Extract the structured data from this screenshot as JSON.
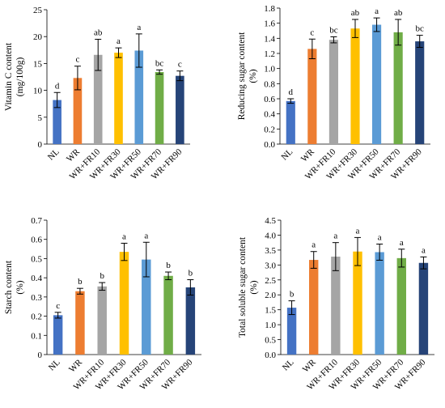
{
  "chart_data": [
    {
      "type": "bar",
      "ylabel": "Vitamin C content\n(mg/100g)",
      "ylim": [
        0,
        25
      ],
      "yticks": [
        0,
        5,
        10,
        15,
        20,
        25
      ],
      "grid": false,
      "categories": [
        "NL",
        "WR",
        "WR+FR10",
        "WR+FR30",
        "WR+FR50",
        "WR+FR70",
        "WR+FR90"
      ],
      "values": [
        8.2,
        12.3,
        16.6,
        17.0,
        17.4,
        13.4,
        12.7
      ],
      "errors": [
        1.4,
        2.2,
        2.9,
        0.9,
        3.1,
        0.4,
        0.9
      ],
      "letters": [
        "d",
        "c",
        "ab",
        "a",
        "a",
        "bc",
        "c"
      ]
    },
    {
      "type": "bar",
      "ylabel": "Reducing sugar content\n(%)",
      "ylim": [
        0,
        1.8
      ],
      "yticks": [
        0,
        0.2,
        0.4,
        0.6,
        0.8,
        1.0,
        1.2,
        1.4,
        1.6,
        1.8
      ],
      "yticklabels": [
        "0.0",
        "0.2",
        "0.4",
        "0.6",
        "0.8",
        "1.0",
        "1.2",
        "1.4",
        "1.6",
        "1.8"
      ],
      "grid": false,
      "categories": [
        "NL",
        "WR",
        "WR+FR10",
        "WR+FR30",
        "WR+FR50",
        "WR+FR70",
        "WR+FR90"
      ],
      "values": [
        0.57,
        1.26,
        1.38,
        1.53,
        1.58,
        1.48,
        1.36
      ],
      "errors": [
        0.03,
        0.13,
        0.04,
        0.12,
        0.09,
        0.17,
        0.08
      ],
      "letters": [
        "d",
        "c",
        "bc",
        "ab",
        "a",
        "ab",
        "bc"
      ]
    },
    {
      "type": "bar",
      "ylabel": "Starch content\n(%)",
      "ylim": [
        0,
        0.7
      ],
      "yticks": [
        0,
        0.1,
        0.2,
        0.3,
        0.4,
        0.5,
        0.6,
        0.7
      ],
      "yticklabels": [
        "0",
        "0.1",
        "0.2",
        "0.3",
        "0.4",
        "0.5",
        "0.6",
        "0.7"
      ],
      "grid": false,
      "categories": [
        "NL",
        "WR",
        "WR+FR10",
        "WR+FR30",
        "WR+FR50",
        "WR+FR70",
        "WR+FR90"
      ],
      "values": [
        0.205,
        0.33,
        0.355,
        0.535,
        0.495,
        0.41,
        0.35
      ],
      "errors": [
        0.015,
        0.015,
        0.02,
        0.045,
        0.09,
        0.02,
        0.04
      ],
      "letters": [
        "c",
        "b",
        "b",
        "a",
        "a",
        "b",
        "b"
      ]
    },
    {
      "type": "bar",
      "ylabel": "Total soluble sugar content\n(%)",
      "ylim": [
        0,
        4.5
      ],
      "yticks": [
        0,
        0.5,
        1.0,
        1.5,
        2.0,
        2.5,
        3.0,
        3.5,
        4.0,
        4.5
      ],
      "yticklabels": [
        "0.0",
        "0.5",
        "1.0",
        "1.5",
        "2.0",
        "2.5",
        "3.0",
        "3.5",
        "4.0",
        "4.5"
      ],
      "grid": false,
      "categories": [
        "NL",
        "WR",
        "WR+FR10",
        "WR+FR30",
        "WR+FR50",
        "WR+FR70",
        "WR+FR90"
      ],
      "values": [
        1.57,
        3.17,
        3.28,
        3.45,
        3.43,
        3.23,
        3.07
      ],
      "errors": [
        0.23,
        0.28,
        0.47,
        0.47,
        0.27,
        0.3,
        0.2
      ],
      "letters": [
        "b",
        "a",
        "a",
        "a",
        "a",
        "a",
        "a"
      ]
    }
  ],
  "colors": [
    "#4472C4",
    "#ED7D31",
    "#A5A5A5",
    "#FFC000",
    "#5B9BD5",
    "#70AD47",
    "#264478"
  ]
}
